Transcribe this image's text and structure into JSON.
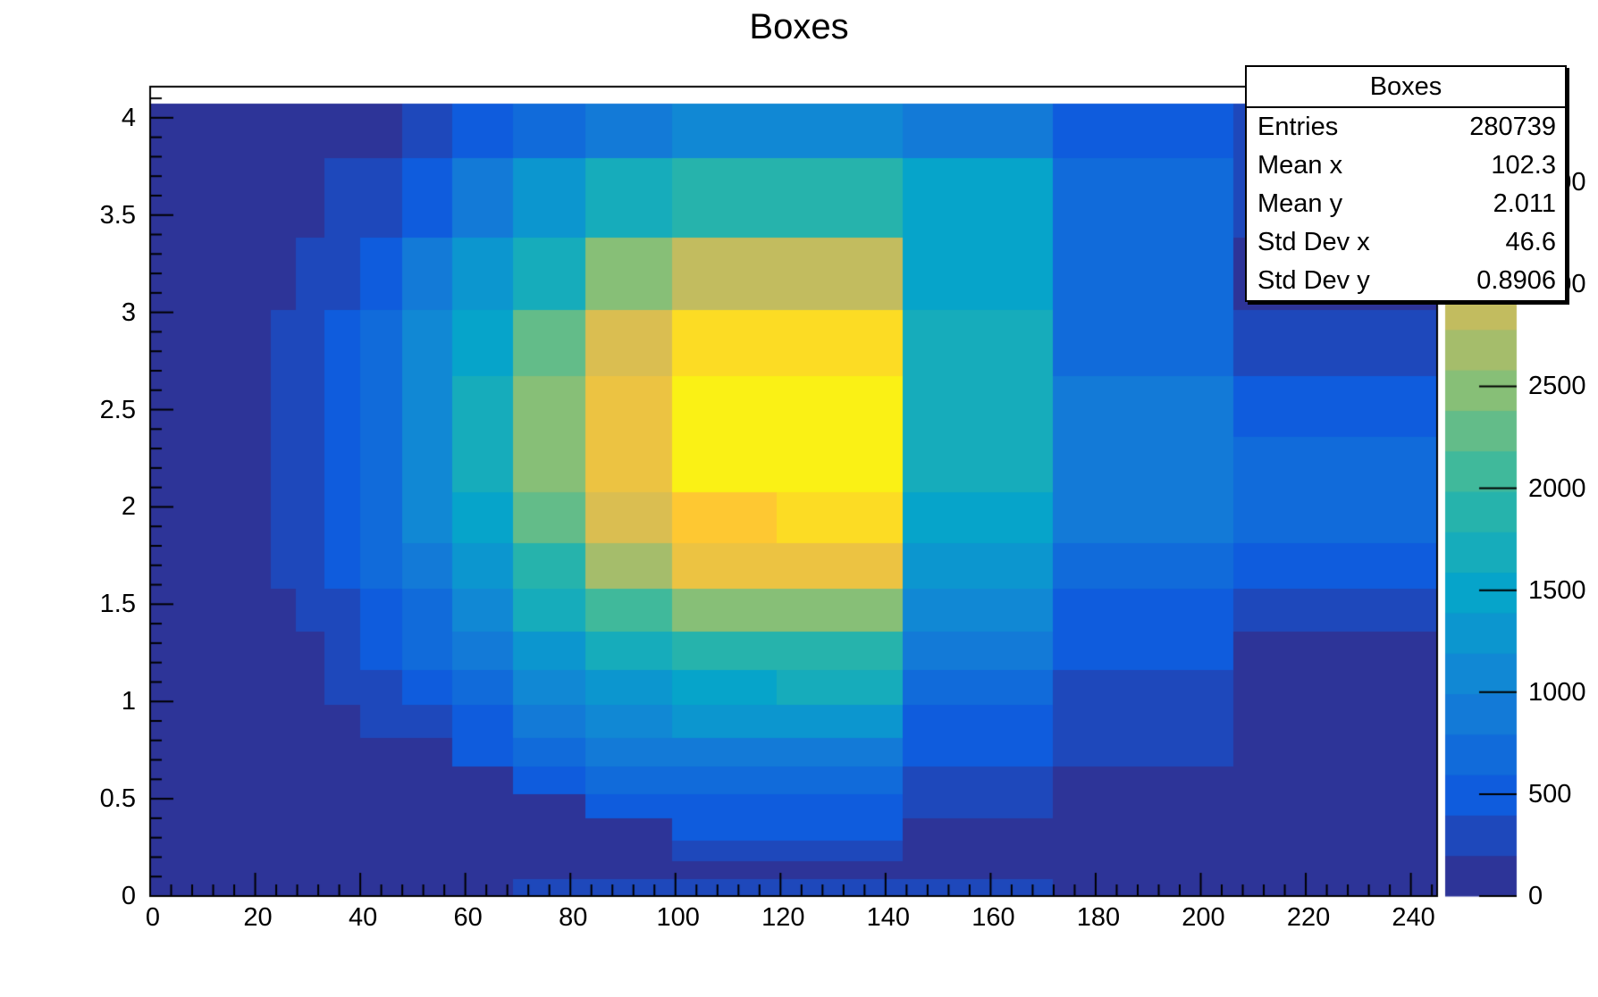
{
  "title": "Boxes",
  "stats_box": {
    "title": "Boxes",
    "rows": [
      {
        "label": "Entries",
        "value": "280739"
      },
      {
        "label": "Mean x",
        "value": "102.3"
      },
      {
        "label": "Mean y",
        "value": "2.011"
      },
      {
        "label": "Std Dev x",
        "value": "46.6"
      },
      {
        "label": "Std Dev y",
        "value": "0.8906"
      }
    ]
  },
  "chart_data": {
    "type": "heatmap",
    "title": "Boxes",
    "xlabel": "",
    "ylabel": "",
    "xlim": [
      0,
      245
    ],
    "ylim": [
      0,
      4.16
    ],
    "zlim": [
      0,
      3970
    ],
    "contour_levels": 20,
    "grid": false,
    "legend_position": "right-color-bar",
    "palette_name": "root-bird",
    "palette_stops": [
      [
        53,
        42,
        135
      ],
      [
        15,
        92,
        221
      ],
      [
        20,
        129,
        214
      ],
      [
        6,
        164,
        202
      ],
      [
        46,
        183,
        164
      ],
      [
        135,
        191,
        119
      ],
      [
        209,
        187,
        89
      ],
      [
        254,
        200,
        50
      ],
      [
        249,
        251,
        14
      ]
    ],
    "x_bin_edges": [
      0,
      9.3,
      11.2,
      13.4,
      16.1,
      19.3,
      23.1,
      27.8,
      33.3,
      40,
      48,
      57.6,
      69.1,
      82.9,
      99.5,
      119.4,
      143.3,
      171.9,
      206.3,
      245
    ],
    "y_bin_edges": [
      0,
      0.088,
      0.184,
      0.29,
      0.405,
      0.531,
      0.669,
      0.82,
      0.986,
      1.167,
      1.365,
      1.582,
      1.82,
      2.08,
      2.365,
      2.676,
      3.017,
      3.39,
      3.799,
      4.07
    ],
    "values_rows_bottom_to_top": [
      [
        12,
        3,
        4,
        5,
        7,
        9,
        13,
        19,
        27,
        40,
        59,
        86,
        230,
        270,
        300,
        280,
        250,
        44,
        18
      ],
      [
        15,
        4,
        5,
        7,
        9,
        12,
        17,
        24,
        35,
        51,
        76,
        111,
        159,
        180,
        190,
        195,
        109,
        57,
        23
      ],
      [
        20,
        5,
        6,
        9,
        12,
        16,
        22,
        31,
        46,
        67,
        99,
        145,
        185,
        185,
        300,
        330,
        143,
        74,
        30
      ],
      [
        26,
        7,
        8,
        11,
        15,
        20,
        29,
        40,
        59,
        87,
        128,
        188,
        180,
        190,
        434,
        436,
        186,
        96,
        39
      ],
      [
        33,
        9,
        11,
        15,
        20,
        26,
        38,
        53,
        78,
        113,
        167,
        180,
        190,
        475,
        568,
        570,
        243,
        125,
        51
      ],
      [
        44,
        11,
        14,
        19,
        26,
        35,
        50,
        69,
        102,
        149,
        170,
        190,
        463,
        624,
        746,
        749,
        319,
        165,
        66
      ],
      [
        58,
        15,
        19,
        26,
        34,
        46,
        66,
        91,
        134,
        195,
        190,
        425,
        607,
        819,
        979,
        984,
        419,
        216,
        87
      ],
      [
        76,
        20,
        25,
        33,
        44,
        60,
        86,
        120,
        175,
        256,
        379,
        557,
        796,
        1074,
        1284,
        1290,
        549,
        284,
        114
      ],
      [
        98,
        25,
        32,
        43,
        57,
        77,
        111,
        154,
        226,
        330,
        488,
        717,
        1026,
        1384,
        1580,
        1590,
        707,
        365,
        147
      ],
      [
        124,
        32,
        40,
        55,
        73,
        98,
        141,
        196,
        287,
        420,
        621,
        912,
        1305,
        1760,
        1960,
        1970,
        899,
        465,
        187
      ],
      [
        155,
        40,
        50,
        68,
        91,
        122,
        176,
        244,
        358,
        522,
        773,
        1136,
        1625,
        2150,
        2450,
        2470,
        1120,
        579,
        233
      ],
      [
        186,
        48,
        61,
        82,
        109,
        147,
        212,
        294,
        432,
        630,
        932,
        1370,
        1960,
        2644,
        3300,
        3280,
        1351,
        698,
        430
      ],
      [
        190,
        56,
        70,
        95,
        125,
        169,
        244,
        338,
        496,
        724,
        1071,
        1574,
        2252,
        3038,
        3500,
        3660,
        1552,
        802,
        620
      ],
      [
        195,
        60,
        76,
        103,
        136,
        184,
        265,
        368,
        540,
        787,
        1165,
        1712,
        2449,
        3304,
        3949,
        3966,
        1688,
        872,
        680
      ],
      [
        195,
        61,
        75,
        104,
        137,
        183,
        267,
        366,
        541,
        785,
        1166,
        1709,
        2450,
        3300,
        3945,
        3960,
        1690,
        870,
        560
      ],
      [
        190,
        55,
        69,
        94,
        124,
        168,
        241,
        334,
        491,
        716,
        1059,
        1556,
        2227,
        3004,
        3590,
        3606,
        1600,
        793,
        320
      ],
      [
        169,
        44,
        55,
        75,
        99,
        134,
        192,
        267,
        391,
        571,
        845,
        1242,
        1776,
        2396,
        2864,
        2877,
        1550,
        632,
        190
      ],
      [
        115,
        30,
        37,
        51,
        67,
        91,
        131,
        181,
        266,
        388,
        574,
        844,
        1207,
        1628,
        1947,
        1955,
        1480,
        620,
        260
      ],
      [
        56,
        14,
        18,
        25,
        33,
        44,
        64,
        88,
        129,
        188,
        279,
        410,
        610,
        850,
        1000,
        1000,
        900,
        480,
        210
      ]
    ],
    "x_axis": {
      "ticks": [
        0,
        20,
        40,
        60,
        80,
        100,
        120,
        140,
        160,
        180,
        200,
        220,
        240
      ],
      "minor_step": 4
    },
    "y_axis": {
      "ticks": [
        0,
        0.5,
        1,
        1.5,
        2,
        2.5,
        3,
        3.5,
        4
      ],
      "minor_step": 0.1
    },
    "z_axis": {
      "ticks": [
        0,
        500,
        1000,
        1500,
        2000,
        2500,
        3000,
        3500
      ]
    }
  },
  "colors": {
    "background": "#ffffff",
    "axis": "#000000",
    "text": "#000000",
    "peak_yellow": "#faf115",
    "base_navy": "#2d3498"
  }
}
